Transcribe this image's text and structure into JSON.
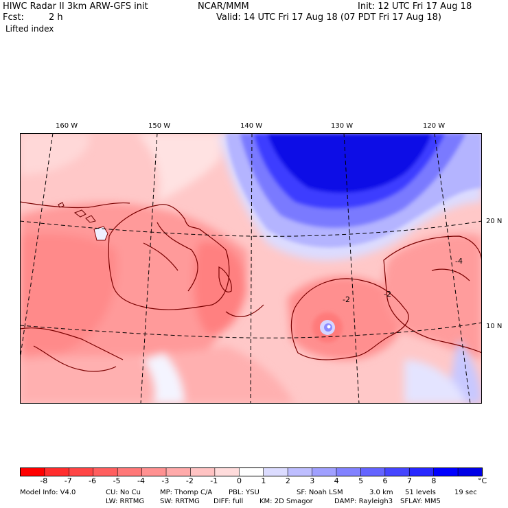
{
  "header": {
    "model_title": "HIWC Radar II 3km ARW-GFS init",
    "org": "NCAR/MMM",
    "init": "Init: 12 UTC Fri 17 Aug 18",
    "fcst_label": "Fcst:",
    "fcst_value": "2 h",
    "valid": "Valid: 14 UTC Fri 17 Aug 18 (07 PDT Fri 17 Aug 18)",
    "field": "Lifted index"
  },
  "map": {
    "lon_labels": [
      "160 W",
      "150 W",
      "140 W",
      "130 W",
      "120 W"
    ],
    "lat_labels": [
      "20 N",
      "10 N"
    ],
    "contour_labels": [
      "-2",
      "-2",
      "-4"
    ]
  },
  "colorbar": {
    "ticks": [
      "-8",
      "-7",
      "-6",
      "-5",
      "-4",
      "-3",
      "-2",
      "-1",
      "0",
      "1",
      "2",
      "3",
      "4",
      "5",
      "6",
      "7",
      "8"
    ],
    "unit": "°C",
    "colors": [
      "#ff0000",
      "#ff2d2d",
      "#ff4646",
      "#ff5f5f",
      "#ff7878",
      "#ff9191",
      "#ffaaaa",
      "#ffc3c3",
      "#ffdcdc",
      "#ffffff",
      "#dcdcff",
      "#bebeff",
      "#a0a0ff",
      "#8282ff",
      "#6464ff",
      "#4646ff",
      "#2828ff",
      "#0000ff",
      "#0000e6"
    ]
  },
  "footer": {
    "model_info": "Model Info: V4.0",
    "cu": "CU: No Cu",
    "mp": "MP: Thomp C/A",
    "pbl": "PBL: YSU",
    "sf": "SF: Noah LSM",
    "res": "3.0 km",
    "levels": "51 levels",
    "sec": "19 sec",
    "lw": "LW: RRTMG",
    "sw": "SW: RRTMG",
    "diff": "DIFF: full",
    "km": "KM: 2D Smagor",
    "damp": "DAMP: Rayleigh3",
    "sflay": "SFLAY: MM5"
  }
}
